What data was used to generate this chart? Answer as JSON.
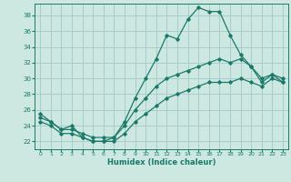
{
  "xlabel": "Humidex (Indice chaleur)",
  "xlim": [
    -0.5,
    23.5
  ],
  "ylim": [
    21.0,
    39.5
  ],
  "xticks": [
    0,
    1,
    2,
    3,
    4,
    5,
    6,
    7,
    8,
    9,
    10,
    11,
    12,
    13,
    14,
    15,
    16,
    17,
    18,
    19,
    20,
    21,
    22,
    23
  ],
  "yticks": [
    22,
    24,
    26,
    28,
    30,
    32,
    34,
    36,
    38
  ],
  "bg_color": "#cce8e0",
  "grid_color": "#aacccc",
  "line_color": "#1a7a6a",
  "line1_x": [
    0,
    1,
    2,
    3,
    4,
    5,
    6,
    7,
    8,
    9,
    10,
    11,
    12,
    13,
    14,
    15,
    16,
    17,
    18,
    19,
    20,
    21,
    22,
    23
  ],
  "line1_y": [
    25.5,
    24.5,
    23.5,
    24.0,
    22.5,
    22.0,
    22.0,
    22.5,
    24.5,
    27.5,
    30.0,
    32.5,
    35.5,
    35.0,
    37.5,
    39.0,
    38.5,
    38.5,
    35.5,
    33.0,
    31.5,
    30.0,
    30.5,
    29.5
  ],
  "line2_x": [
    0,
    1,
    2,
    3,
    4,
    5,
    6,
    7,
    8,
    9,
    10,
    11,
    12,
    13,
    14,
    15,
    16,
    17,
    18,
    19,
    20,
    21,
    22,
    23
  ],
  "line2_y": [
    25.0,
    24.5,
    23.5,
    23.5,
    23.0,
    22.5,
    22.5,
    22.5,
    24.0,
    26.0,
    27.5,
    29.0,
    30.0,
    30.5,
    31.0,
    31.5,
    32.0,
    32.5,
    32.0,
    32.5,
    31.5,
    29.5,
    30.5,
    30.0
  ],
  "line3_x": [
    0,
    1,
    2,
    3,
    4,
    5,
    6,
    7,
    8,
    9,
    10,
    11,
    12,
    13,
    14,
    15,
    16,
    17,
    18,
    19,
    20,
    21,
    22,
    23
  ],
  "line3_y": [
    24.5,
    24.0,
    23.0,
    23.0,
    22.5,
    22.0,
    22.0,
    22.0,
    23.0,
    24.5,
    25.5,
    26.5,
    27.5,
    28.0,
    28.5,
    29.0,
    29.5,
    29.5,
    29.5,
    30.0,
    29.5,
    29.0,
    30.0,
    29.5
  ]
}
